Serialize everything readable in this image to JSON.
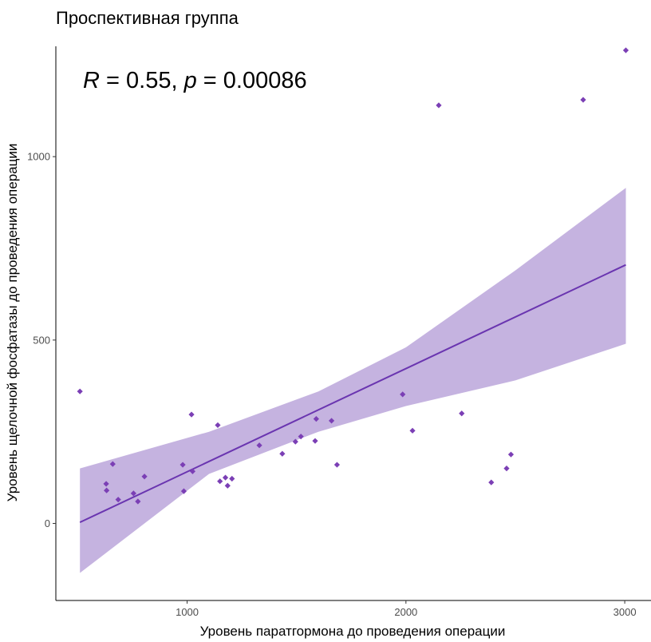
{
  "chart_data": {
    "type": "scatter",
    "title": "Проспективная группа",
    "xlabel": "Уровень паратгормона до проведения операции",
    "ylabel": "Уровень щелочной фосфатазы до проведения операции",
    "annotation": {
      "r_symbol": "R",
      "r_value": " = 0.55, ",
      "p_symbol": "p",
      "p_value": " = 0.00086"
    },
    "xlim": [
      400,
      3120
    ],
    "ylim": [
      -210,
      1340
    ],
    "x_ticks": [
      1000,
      2000,
      3000
    ],
    "y_ticks": [
      0,
      500,
      1000
    ],
    "x_tick_labels": [
      "1000",
      "2000",
      "3000"
    ],
    "y_tick_labels": [
      "0",
      "500",
      "1000"
    ],
    "grid": false,
    "colors": {
      "points": "#7B3FB5",
      "line": "#6A35B0",
      "ribbon": "#C5B3E0"
    },
    "points": [
      {
        "x": 510,
        "y": 360
      },
      {
        "x": 630,
        "y": 108
      },
      {
        "x": 632,
        "y": 90
      },
      {
        "x": 660,
        "y": 162
      },
      {
        "x": 685,
        "y": 65
      },
      {
        "x": 755,
        "y": 82
      },
      {
        "x": 775,
        "y": 60
      },
      {
        "x": 805,
        "y": 128
      },
      {
        "x": 980,
        "y": 160
      },
      {
        "x": 985,
        "y": 88
      },
      {
        "x": 1020,
        "y": 297
      },
      {
        "x": 1025,
        "y": 142
      },
      {
        "x": 1140,
        "y": 268
      },
      {
        "x": 1150,
        "y": 115
      },
      {
        "x": 1175,
        "y": 125
      },
      {
        "x": 1185,
        "y": 103
      },
      {
        "x": 1205,
        "y": 122
      },
      {
        "x": 1330,
        "y": 213
      },
      {
        "x": 1435,
        "y": 190
      },
      {
        "x": 1495,
        "y": 223
      },
      {
        "x": 1520,
        "y": 237
      },
      {
        "x": 1585,
        "y": 225
      },
      {
        "x": 1590,
        "y": 285
      },
      {
        "x": 1660,
        "y": 280
      },
      {
        "x": 1685,
        "y": 160
      },
      {
        "x": 1985,
        "y": 352
      },
      {
        "x": 2030,
        "y": 253
      },
      {
        "x": 2150,
        "y": 1140
      },
      {
        "x": 2255,
        "y": 300
      },
      {
        "x": 2390,
        "y": 112
      },
      {
        "x": 2460,
        "y": 150
      },
      {
        "x": 2480,
        "y": 188
      },
      {
        "x": 2810,
        "y": 1155
      },
      {
        "x": 3005,
        "y": 1290
      }
    ],
    "regression": {
      "x_start": 510,
      "x_end": 3005,
      "y_start": 3,
      "y_end": 705
    },
    "confidence_band": {
      "x": [
        510,
        1100,
        1600,
        2000,
        2500,
        3005
      ],
      "upper": [
        150,
        250,
        360,
        480,
        690,
        915
      ],
      "lower": [
        -135,
        135,
        250,
        320,
        390,
        490
      ]
    }
  }
}
